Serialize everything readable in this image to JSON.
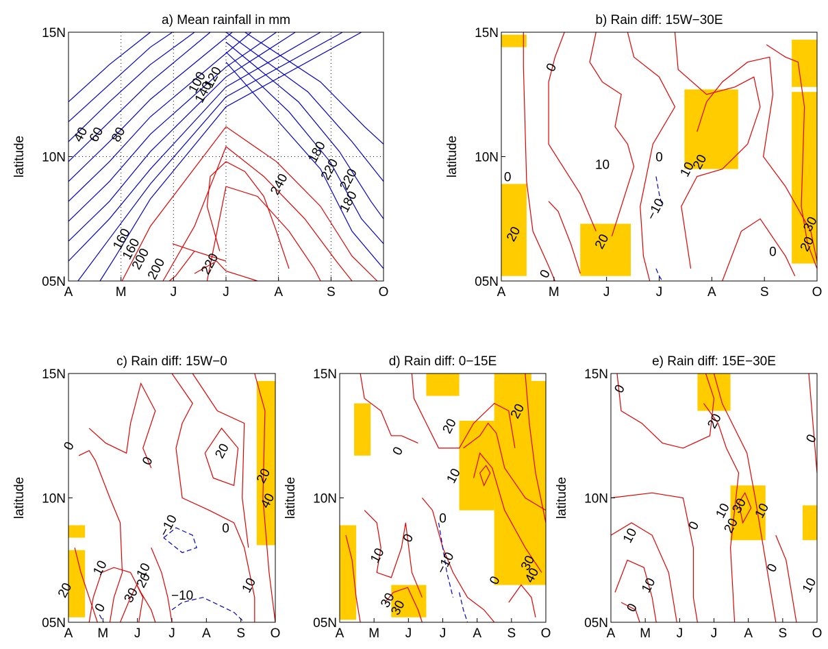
{
  "figure": {
    "shade_color": "#FFCC00",
    "positive_color": "#E00000",
    "negative_color": "#0000CC",
    "ytick_labels": [
      "05N",
      "10N",
      "15N"
    ],
    "xtick_labels": [
      "A",
      "M",
      "J",
      "J",
      "A",
      "S",
      "O"
    ],
    "ylabel": "latitude"
  },
  "chart_data": [
    {
      "id": "a",
      "type": "contour",
      "title": "a) Mean rainfall in mm",
      "ylabel": "latitude",
      "x": [
        "A",
        "M",
        "J",
        "J",
        "A",
        "S",
        "O"
      ],
      "y": [
        "05N",
        "10N",
        "15N"
      ],
      "grid": "dotted",
      "contour_labels": [
        "40",
        "60",
        "80",
        "100",
        "120",
        "140",
        "160",
        "180",
        "160",
        "180",
        "200",
        "220",
        "200",
        "220",
        "220",
        "240"
      ],
      "line_colors": {
        "below_160": "blue",
        "from_160": "red"
      },
      "shaded_cells": []
    },
    {
      "id": "b",
      "type": "contour",
      "title": "b) Rain diff: 15W−30E",
      "ylabel": "latitude",
      "x": [
        "A",
        "M",
        "J",
        "J",
        "A",
        "S",
        "O"
      ],
      "y": [
        "05N",
        "10N",
        "15N"
      ],
      "contour_labels": [
        "0",
        "10",
        "0",
        "10",
        "20",
        "0",
        "−10",
        "20",
        "20",
        "0",
        "0",
        "20",
        "30"
      ],
      "shaded_cells": 5
    },
    {
      "id": "c",
      "type": "contour",
      "title": "c) Rain diff: 15W−0",
      "ylabel": "latitude",
      "x": [
        "A",
        "M",
        "J",
        "J",
        "A",
        "S",
        "O"
      ],
      "y": [
        "05N",
        "10N",
        "15N"
      ],
      "contour_labels": [
        "0",
        "0",
        "20",
        "20",
        "40",
        "−10",
        "0",
        "10",
        "20",
        "10",
        "30",
        "0",
        "−10",
        "10",
        "20"
      ],
      "shaded_cells": 3
    },
    {
      "id": "d",
      "type": "contour",
      "title": "d) Rain diff: 0−15E",
      "ylabel": "latitude",
      "x": [
        "A",
        "M",
        "J",
        "J",
        "A",
        "S",
        "O"
      ],
      "y": [
        "05N",
        "10N",
        "15N"
      ],
      "contour_labels": [
        "20",
        "20",
        "0",
        "10",
        "0",
        "10",
        "0",
        "−10",
        "40",
        "30",
        "0",
        "30",
        "30"
      ],
      "shaded_cells": 5
    },
    {
      "id": "e",
      "type": "contour",
      "title": "e) Rain diff: 15E−30E",
      "ylabel": "latitude",
      "x": [
        "A",
        "M",
        "J",
        "J",
        "A",
        "S",
        "O"
      ],
      "y": [
        "05N",
        "10N",
        "15N"
      ],
      "contour_labels": [
        "0",
        "20",
        "0",
        "10",
        "30",
        "10",
        "10",
        "0",
        "20",
        "10",
        "0",
        "10",
        "0"
      ],
      "shaded_cells": 3
    }
  ]
}
